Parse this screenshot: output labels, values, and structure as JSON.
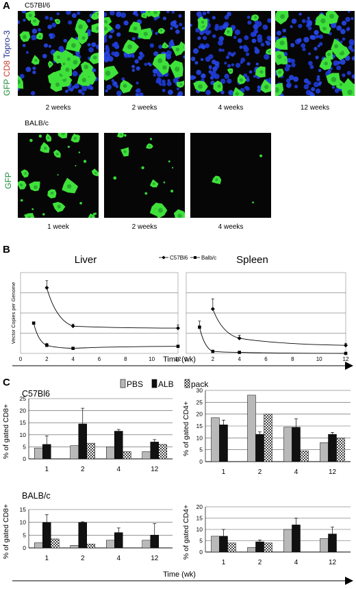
{
  "panel_a": {
    "letter": "A",
    "c57": {
      "strain": "C57Bl/6",
      "stain_label": [
        {
          "text": "GFP",
          "color": "#1a8a3a"
        },
        {
          "text": "CD8",
          "color": "#c0392b"
        },
        {
          "text": "Topro-3",
          "color": "#1a2a8a"
        }
      ],
      "images": [
        {
          "caption": "2 weeks",
          "green_density": 0.85,
          "blue_density": 0.6
        },
        {
          "caption": "2 weeks",
          "green_density": 0.55,
          "blue_density": 0.95
        },
        {
          "caption": "4 weeks",
          "green_density": 0.35,
          "blue_density": 1.0
        },
        {
          "caption": "12 weeks",
          "green_density": 0.55,
          "blue_density": 0.9
        }
      ]
    },
    "balb": {
      "strain": "BALB/c",
      "stain_label": [
        {
          "text": "GFP",
          "color": "#1a8a3a"
        }
      ],
      "images": [
        {
          "caption": "1 week",
          "green_density": 0.45
        },
        {
          "caption": "2 weeks",
          "green_density": 0.22
        },
        {
          "caption": "4 weeks",
          "green_density": 0.04
        }
      ]
    }
  },
  "panel_b": {
    "letter": "B",
    "xlabel": "Time (wk)",
    "chart_data": [
      {
        "type": "line",
        "title": "Liver",
        "ylabel": "Vector Copies per Genome",
        "xlim": [
          0,
          12
        ],
        "xticks": [
          0,
          2,
          4,
          6,
          8,
          10,
          12
        ],
        "ylim": [
          0,
          0.8
        ],
        "series": [
          {
            "name": "C57Bl6",
            "marker": "diamond",
            "x": [
              2,
              4,
              12
            ],
            "y": [
              0.65,
              0.27,
              0.25
            ],
            "err": [
              0.07,
              0.02,
              0.03
            ]
          },
          {
            "name": "Balb/c",
            "marker": "square",
            "x": [
              1,
              2,
              4,
              12
            ],
            "y": [
              0.3,
              0.08,
              0.05,
              0.07
            ],
            "err": [
              0.01,
              0.02,
              0.0,
              0.01
            ]
          }
        ]
      },
      {
        "type": "line",
        "title": "Spleen",
        "ylabel": "",
        "xlim": [
          0,
          12
        ],
        "xticks": [
          0,
          2,
          4,
          6,
          8,
          10,
          12
        ],
        "ylim": [
          0,
          0.8
        ],
        "series": [
          {
            "name": "C57Bl6",
            "marker": "diamond",
            "x": [
              2,
              4,
              12
            ],
            "y": [
              0.44,
              0.15,
              0.08
            ],
            "err": [
              0.1,
              0.03,
              0.02
            ]
          },
          {
            "name": "Balb/c",
            "marker": "square",
            "x": [
              1,
              2,
              4,
              12
            ],
            "y": [
              0.26,
              0.02,
              0.01,
              0.0
            ],
            "err": [
              0.06,
              0.0,
              0.0,
              0.0
            ]
          }
        ]
      }
    ]
  },
  "panel_c": {
    "letter": "C",
    "xlabel": "Time (wk)",
    "legend": [
      {
        "name": "PBS",
        "pattern": "gray"
      },
      {
        "name": "ALB",
        "pattern": "black"
      },
      {
        "name": "pack",
        "pattern": "check"
      }
    ],
    "chart_data": [
      {
        "type": "bar",
        "strain": "C57Bl6",
        "ylabel": "% of gated CD8+",
        "categories": [
          "1",
          "2",
          "4",
          "12"
        ],
        "ylim": [
          0,
          25
        ],
        "yticks": [
          0,
          5,
          10,
          15,
          20,
          25
        ],
        "series": [
          {
            "name": "PBS",
            "values": [
              4.5,
              5.5,
              5.0,
              3.0
            ],
            "err": [
              0,
              0,
              0,
              0
            ]
          },
          {
            "name": "ALB",
            "values": [
              6.0,
              14.5,
              11.5,
              7.0
            ],
            "err": [
              3.5,
              6.5,
              0.7,
              1.0
            ]
          },
          {
            "name": "pack",
            "values": [
              0,
              6.5,
              3.0,
              6.0
            ],
            "err": [
              0,
              0,
              0,
              0
            ]
          }
        ]
      },
      {
        "type": "bar",
        "strain": "",
        "ylabel": "% of gated CD4+",
        "categories": [
          "1",
          "2",
          "4",
          "12"
        ],
        "ylim": [
          0,
          30
        ],
        "yticks": [
          0,
          5,
          10,
          15,
          20,
          25,
          30
        ],
        "series": [
          {
            "name": "PBS",
            "values": [
              18.5,
              28.0,
              14.5,
              8.0
            ],
            "err": [
              0,
              0,
              0,
              0
            ]
          },
          {
            "name": "ALB",
            "values": [
              15.5,
              11.5,
              14.5,
              11.5
            ],
            "err": [
              2.0,
              1.0,
              3.5,
              0.8
            ]
          },
          {
            "name": "pack",
            "values": [
              0,
              20.0,
              4.5,
              10.0
            ],
            "err": [
              0,
              0,
              0,
              0
            ]
          }
        ]
      },
      {
        "type": "bar",
        "strain": "BALB/c",
        "ylabel": "% of gated CD8+",
        "categories": [
          "1",
          "2",
          "4",
          "12"
        ],
        "ylim": [
          0,
          15
        ],
        "yticks": [
          0,
          5,
          10,
          15
        ],
        "series": [
          {
            "name": "PBS",
            "values": [
              2.0,
              1.0,
              3.0,
              3.0
            ],
            "err": [
              0,
              0,
              0,
              0
            ]
          },
          {
            "name": "ALB",
            "values": [
              10.0,
              10.0,
              6.0,
              5.0
            ],
            "err": [
              3.0,
              0.2,
              1.8,
              4.5
            ]
          },
          {
            "name": "pack",
            "values": [
              3.5,
              1.5,
              0,
              0
            ],
            "err": [
              0,
              0,
              0,
              0
            ]
          }
        ]
      },
      {
        "type": "bar",
        "strain": "",
        "ylabel": "% of gated CD4+",
        "categories": [
          "1",
          "2",
          "4",
          "12"
        ],
        "ylim": [
          0,
          20
        ],
        "yticks": [
          0,
          5,
          10,
          15,
          20
        ],
        "series": [
          {
            "name": "PBS",
            "values": [
              7.0,
              2.0,
              10.0,
              6.0
            ],
            "err": [
              0,
              0,
              0,
              0
            ]
          },
          {
            "name": "ALB",
            "values": [
              7.0,
              4.5,
              12.0,
              8.0
            ],
            "err": [
              3.0,
              0.8,
              3.0,
              3.0
            ]
          },
          {
            "name": "pack",
            "values": [
              4.0,
              4.0,
              0,
              0
            ],
            "err": [
              0,
              0,
              0,
              0
            ]
          }
        ]
      }
    ]
  }
}
